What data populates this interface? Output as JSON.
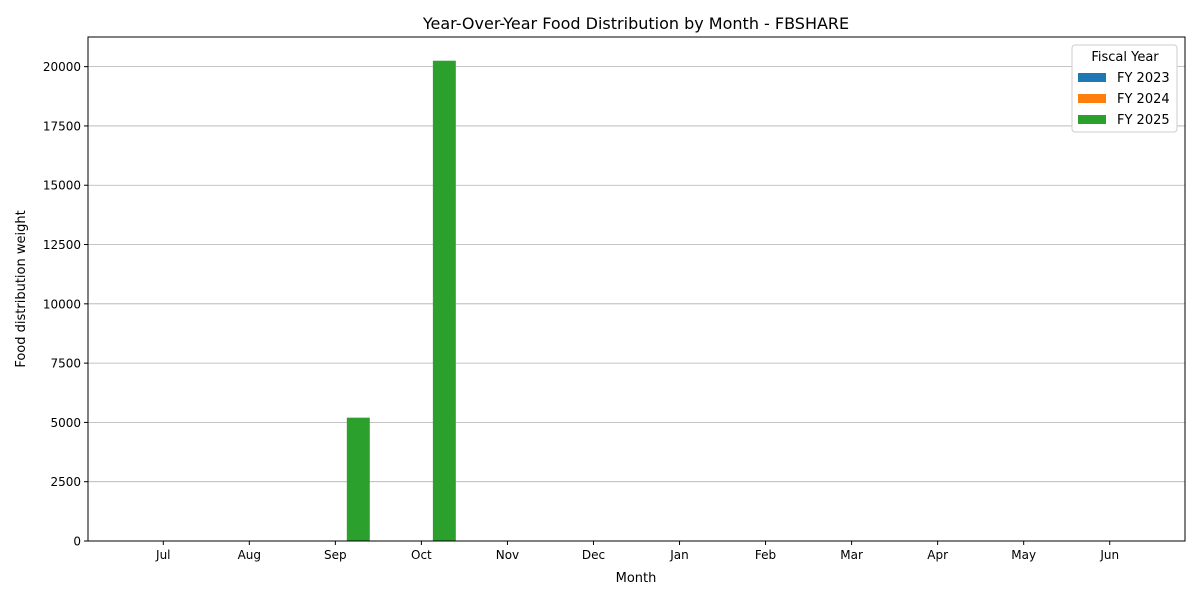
{
  "chart_data": {
    "type": "bar",
    "title": "Year-Over-Year Food Distribution by Month - FBSHARE",
    "xlabel": "Month",
    "ylabel": "Food distribution weight",
    "categories": [
      "Jul",
      "Aug",
      "Sep",
      "Oct",
      "Nov",
      "Dec",
      "Jan",
      "Feb",
      "Mar",
      "Apr",
      "May",
      "Jun"
    ],
    "series": [
      {
        "name": "FY 2023",
        "color": "#1f77b4",
        "values": [
          0,
          0,
          0,
          0,
          0,
          0,
          0,
          0,
          0,
          0,
          0,
          0
        ]
      },
      {
        "name": "FY 2024",
        "color": "#ff7f0e",
        "values": [
          0,
          0,
          0,
          0,
          0,
          0,
          0,
          0,
          0,
          0,
          0,
          0
        ]
      },
      {
        "name": "FY 2025",
        "color": "#2ca02c",
        "values": [
          0,
          0,
          5200,
          20250,
          0,
          0,
          0,
          0,
          0,
          0,
          0,
          0
        ]
      }
    ],
    "ylim": [
      0,
      21250
    ],
    "yticks": [
      0,
      2500,
      5000,
      7500,
      10000,
      12500,
      15000,
      17500,
      20000
    ],
    "grid": "y",
    "legend": {
      "title": "Fiscal Year",
      "placement": "top-right"
    }
  }
}
